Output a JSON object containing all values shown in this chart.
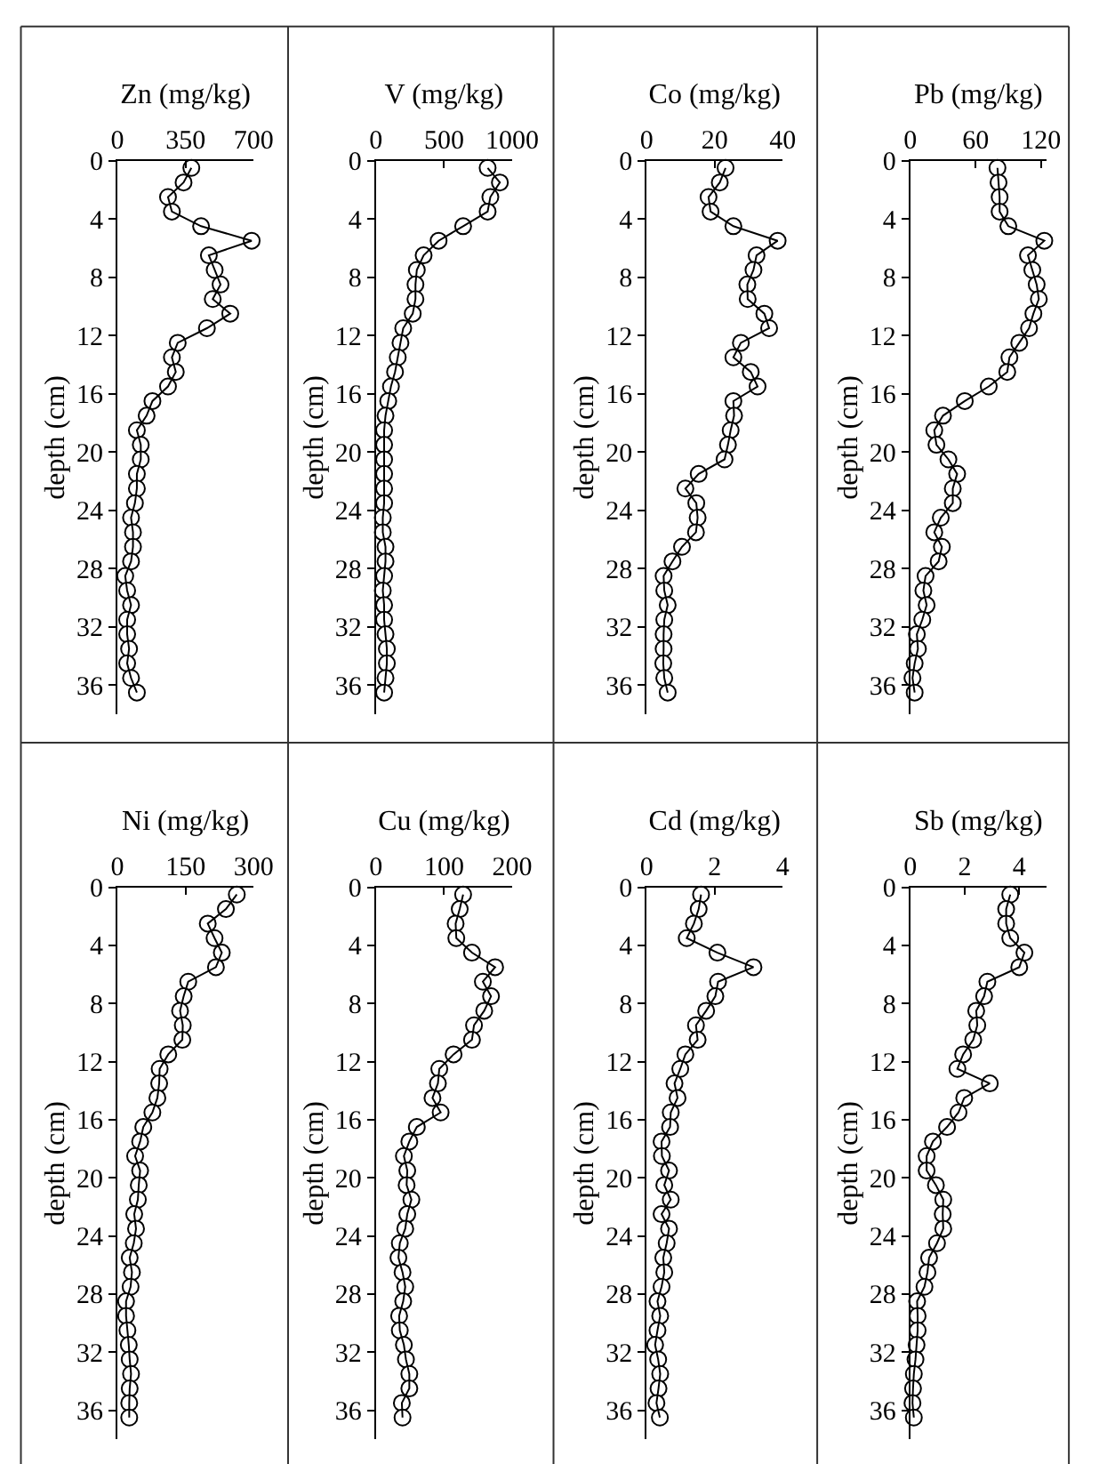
{
  "chart_data": [
    {
      "type": "line",
      "orientation": "horizontal",
      "marker": "circle",
      "line_style": "solid",
      "xlabel": "Zn (mg/kg)",
      "ylabel": "depth (cm)",
      "xlim": [
        0,
        700
      ],
      "xticks": [
        0,
        350,
        700
      ],
      "ylim": [
        38,
        0
      ],
      "yticks": [
        0,
        4,
        8,
        12,
        16,
        20,
        24,
        28,
        32,
        36
      ],
      "x": [
        0.5,
        1.5,
        2.5,
        3.5,
        4.5,
        5.5,
        6.5,
        7.5,
        8.5,
        9.5,
        10.5,
        11.5,
        12.5,
        13.5,
        14.5,
        15.5,
        16.5,
        17.5,
        18.5,
        19.5,
        20.5,
        21.5,
        22.5,
        23.5,
        24.5,
        25.5,
        26.5,
        27.5,
        28.5,
        29.5,
        30.5,
        31.5,
        32.5,
        33.5,
        34.5,
        35.5,
        36.5
      ],
      "series": [
        {
          "color": "#000000",
          "values": [
            380,
            340,
            260,
            280,
            430,
            690,
            470,
            500,
            530,
            490,
            580,
            460,
            310,
            280,
            300,
            260,
            180,
            150,
            100,
            120,
            120,
            100,
            100,
            90,
            70,
            80,
            80,
            70,
            40,
            50,
            70,
            50,
            50,
            60,
            50,
            70,
            100
          ]
        }
      ]
    },
    {
      "type": "line",
      "orientation": "horizontal",
      "marker": "circle",
      "line_style": "solid",
      "xlabel": "V (mg/kg)",
      "ylabel": "depth (cm)",
      "xlim": [
        0,
        1000
      ],
      "xticks": [
        0,
        500,
        1000
      ],
      "ylim": [
        38,
        0
      ],
      "yticks": [
        0,
        4,
        8,
        12,
        16,
        20,
        24,
        28,
        32,
        36
      ],
      "x": [
        0.5,
        1.5,
        2.5,
        3.5,
        4.5,
        5.5,
        6.5,
        7.5,
        8.5,
        9.5,
        10.5,
        11.5,
        12.5,
        13.5,
        14.5,
        15.5,
        16.5,
        17.5,
        18.5,
        19.5,
        20.5,
        21.5,
        22.5,
        23.5,
        24.5,
        25.5,
        26.5,
        27.5,
        28.5,
        29.5,
        30.5,
        31.5,
        32.5,
        33.5,
        34.5,
        35.5,
        36.5
      ],
      "series": [
        {
          "color": "#000000",
          "values": [
            820,
            910,
            840,
            820,
            640,
            460,
            350,
            300,
            290,
            290,
            270,
            200,
            180,
            160,
            140,
            110,
            90,
            70,
            60,
            60,
            60,
            60,
            60,
            60,
            50,
            50,
            70,
            70,
            60,
            50,
            60,
            60,
            70,
            80,
            80,
            70,
            60
          ]
        }
      ]
    },
    {
      "type": "line",
      "orientation": "horizontal",
      "marker": "circle",
      "line_style": "solid",
      "xlabel": "Co (mg/kg)",
      "ylabel": "depth (cm)",
      "xlim": [
        0,
        40
      ],
      "xticks": [
        0,
        20,
        40
      ],
      "ylim": [
        38,
        0
      ],
      "yticks": [
        0,
        4,
        8,
        12,
        16,
        20,
        24,
        28,
        32,
        36
      ],
      "x": [
        0.5,
        1.5,
        2.5,
        3.5,
        4.5,
        5.5,
        6.5,
        7.5,
        8.5,
        9.5,
        10.5,
        11.5,
        12.5,
        13.5,
        14.5,
        15.5,
        16.5,
        17.5,
        18.5,
        19.5,
        20.5,
        21.5,
        22.5,
        23.5,
        24.5,
        25.5,
        26.5,
        27.5,
        28.5,
        29.5,
        30.5,
        31.5,
        32.5,
        33.5,
        34.5,
        35.5,
        36.5
      ],
      "series": [
        {
          "color": "#000000",
          "values": [
            23.2,
            21.5,
            18.2,
            18.8,
            25.5,
            38.5,
            32.3,
            31.4,
            29.6,
            29.7,
            34.6,
            36.0,
            27.7,
            25.5,
            30.6,
            32.6,
            25.5,
            25.7,
            24.7,
            23.9,
            22.9,
            15.3,
            11.4,
            14.6,
            15.0,
            14.5,
            10.4,
            7.6,
            5.0,
            5.2,
            6.2,
            5.2,
            5.0,
            5.0,
            4.9,
            5.2,
            6.2
          ]
        }
      ]
    },
    {
      "type": "line",
      "orientation": "horizontal",
      "marker": "circle",
      "line_style": "solid",
      "xlabel": "Pb (mg/kg)",
      "ylabel": "depth (cm)",
      "xlim": [
        0,
        125
      ],
      "xticks": [
        0,
        60,
        120
      ],
      "ylim": [
        38,
        0
      ],
      "yticks": [
        0,
        4,
        8,
        12,
        16,
        20,
        24,
        28,
        32,
        36
      ],
      "x": [
        0.5,
        1.5,
        2.5,
        3.5,
        4.5,
        5.5,
        6.5,
        7.5,
        8.5,
        9.5,
        10.5,
        11.5,
        12.5,
        13.5,
        14.5,
        15.5,
        16.5,
        17.5,
        18.5,
        19.5,
        20.5,
        21.5,
        22.5,
        23.5,
        24.5,
        25.5,
        26.5,
        27.5,
        28.5,
        29.5,
        30.5,
        31.5,
        32.5,
        33.5,
        34.5,
        35.5,
        36.5
      ],
      "series": [
        {
          "color": "#000000",
          "values": [
            80,
            81,
            82,
            82,
            90,
            123,
            108,
            112,
            116,
            118,
            113,
            109,
            100,
            91,
            89,
            72,
            50,
            30,
            22,
            24,
            35,
            43,
            39,
            39,
            28,
            22,
            29,
            26,
            14,
            12,
            15,
            11,
            6,
            7,
            4,
            2,
            4
          ]
        }
      ]
    },
    {
      "type": "line",
      "orientation": "horizontal",
      "marker": "circle",
      "line_style": "solid",
      "xlabel": "Ni (mg/kg)",
      "ylabel": "depth (cm)",
      "xlim": [
        0,
        300
      ],
      "xticks": [
        0,
        150,
        300
      ],
      "ylim": [
        38,
        0
      ],
      "yticks": [
        0,
        4,
        8,
        12,
        16,
        20,
        24,
        28,
        32,
        36
      ],
      "x": [
        0.5,
        1.5,
        2.5,
        3.5,
        4.5,
        5.5,
        6.5,
        7.5,
        8.5,
        9.5,
        10.5,
        11.5,
        12.5,
        13.5,
        14.5,
        15.5,
        16.5,
        17.5,
        18.5,
        19.5,
        20.5,
        21.5,
        22.5,
        23.5,
        24.5,
        25.5,
        26.5,
        27.5,
        28.5,
        29.5,
        30.5,
        31.5,
        32.5,
        33.5,
        34.5,
        35.5,
        36.5
      ],
      "series": [
        {
          "color": "#000000",
          "values": [
            263,
            239,
            199,
            214,
            230,
            217,
            156,
            146,
            138,
            144,
            143,
            112,
            93,
            92,
            88,
            77,
            57,
            50,
            39,
            50,
            47,
            45,
            37,
            41,
            36,
            27,
            32,
            29,
            19,
            19,
            22,
            25,
            27,
            30,
            27,
            26,
            26
          ]
        }
      ]
    },
    {
      "type": "line",
      "orientation": "horizontal",
      "marker": "circle",
      "line_style": "solid",
      "xlabel": "Cu (mg/kg)",
      "ylabel": "depth (cm)",
      "xlim": [
        0,
        200
      ],
      "xticks": [
        0,
        100,
        200
      ],
      "ylim": [
        38,
        0
      ],
      "yticks": [
        0,
        4,
        8,
        12,
        16,
        20,
        24,
        28,
        32,
        36
      ],
      "x": [
        0.5,
        1.5,
        2.5,
        3.5,
        4.5,
        5.5,
        6.5,
        7.5,
        8.5,
        9.5,
        10.5,
        11.5,
        12.5,
        13.5,
        14.5,
        15.5,
        16.5,
        17.5,
        18.5,
        19.5,
        20.5,
        21.5,
        22.5,
        23.5,
        24.5,
        25.5,
        26.5,
        27.5,
        28.5,
        29.5,
        30.5,
        31.5,
        32.5,
        33.5,
        34.5,
        35.5,
        36.5
      ],
      "series": [
        {
          "color": "#000000",
          "values": [
            128,
            123,
            117,
            118,
            141,
            175,
            157,
            169,
            159,
            144,
            141,
            114,
            93,
            91,
            83,
            95,
            60,
            49,
            41,
            46,
            45,
            52,
            46,
            43,
            35,
            33,
            39,
            43,
            40,
            34,
            35,
            41,
            44,
            49,
            49,
            38,
            39
          ]
        }
      ]
    },
    {
      "type": "line",
      "orientation": "horizontal",
      "marker": "circle",
      "line_style": "solid",
      "xlabel": "Cd (mg/kg)",
      "ylabel": "depth (cm)",
      "xlim": [
        0,
        4
      ],
      "xticks": [
        0,
        2,
        4
      ],
      "ylim": [
        38,
        0
      ],
      "yticks": [
        0,
        4,
        8,
        12,
        16,
        20,
        24,
        28,
        32,
        36
      ],
      "x": [
        0.5,
        1.5,
        2.5,
        3.5,
        4.5,
        5.5,
        6.5,
        7.5,
        8.5,
        9.5,
        10.5,
        11.5,
        12.5,
        13.5,
        14.5,
        15.5,
        16.5,
        17.5,
        18.5,
        19.5,
        20.5,
        21.5,
        22.5,
        23.5,
        24.5,
        25.5,
        26.5,
        27.5,
        28.5,
        29.5,
        30.5,
        31.5,
        32.5,
        33.5,
        34.5,
        35.5,
        36.5
      ],
      "series": [
        {
          "color": "#000000",
          "values": [
            1.6,
            1.53,
            1.39,
            1.18,
            2.08,
            3.14,
            2.1,
            2.02,
            1.75,
            1.45,
            1.5,
            1.14,
            0.99,
            0.82,
            0.91,
            0.71,
            0.69,
            0.44,
            0.45,
            0.66,
            0.52,
            0.71,
            0.44,
            0.66,
            0.59,
            0.49,
            0.52,
            0.44,
            0.32,
            0.4,
            0.32,
            0.25,
            0.34,
            0.4,
            0.35,
            0.29,
            0.39
          ]
        }
      ]
    },
    {
      "type": "line",
      "orientation": "horizontal",
      "marker": "circle",
      "line_style": "solid",
      "xlabel": "Sb (mg/kg)",
      "ylabel": "depth (cm)",
      "xlim": [
        0,
        5
      ],
      "xticks": [
        0,
        2,
        4
      ],
      "ylim": [
        38,
        0
      ],
      "yticks": [
        0,
        4,
        8,
        12,
        16,
        20,
        24,
        28,
        32,
        36
      ],
      "x": [
        0.5,
        1.5,
        2.5,
        3.5,
        4.5,
        5.5,
        6.5,
        7.5,
        8.5,
        9.5,
        10.5,
        11.5,
        12.5,
        13.5,
        14.5,
        15.5,
        16.5,
        17.5,
        18.5,
        19.5,
        20.5,
        21.5,
        22.5,
        23.5,
        24.5,
        25.5,
        26.5,
        27.5,
        28.5,
        29.5,
        30.5,
        31.5,
        32.5,
        33.5,
        34.5,
        35.5,
        36.5
      ],
      "series": [
        {
          "color": "#000000",
          "values": [
            3.67,
            3.52,
            3.52,
            3.67,
            4.19,
            4.0,
            2.83,
            2.71,
            2.42,
            2.46,
            2.31,
            1.94,
            1.73,
            2.92,
            1.98,
            1.77,
            1.35,
            0.83,
            0.6,
            0.6,
            0.94,
            1.21,
            1.19,
            1.21,
            0.98,
            0.69,
            0.63,
            0.52,
            0.25,
            0.27,
            0.27,
            0.23,
            0.19,
            0.13,
            0.1,
            0.08,
            0.13
          ]
        }
      ]
    }
  ]
}
